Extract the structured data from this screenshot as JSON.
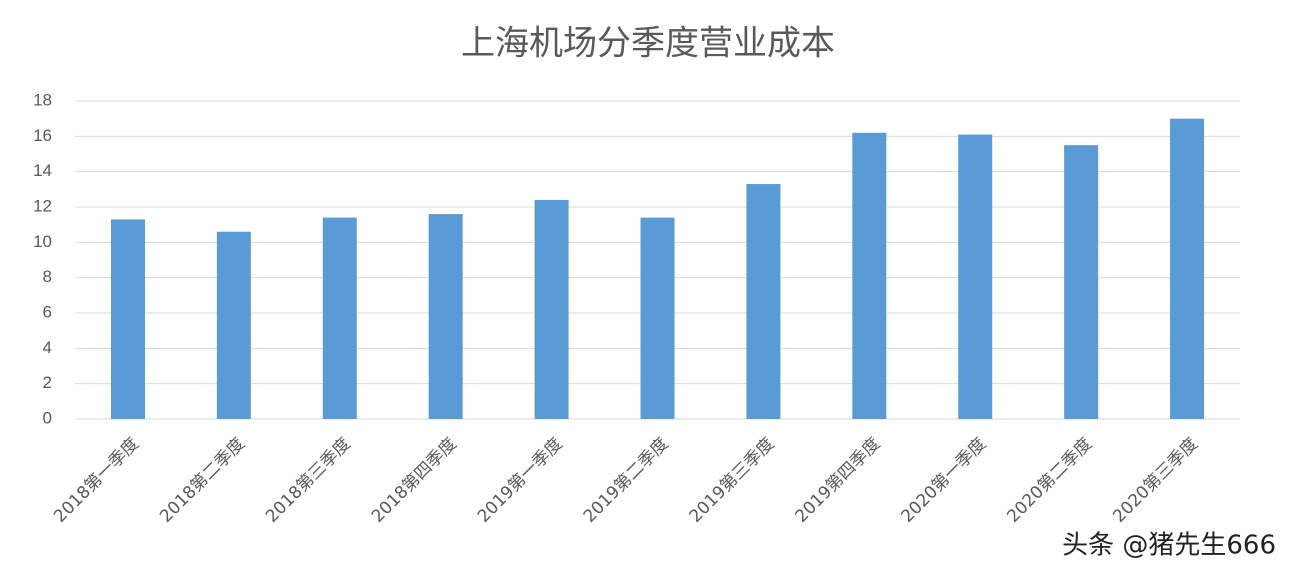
{
  "chart_data": {
    "type": "bar",
    "title": "上海机场分季度营业成本",
    "categories": [
      "2018第一季度",
      "2018第二季度",
      "2018第三季度",
      "2018第四季度",
      "2019第一季度",
      "2019第二季度",
      "2019第三季度",
      "2019第四季度",
      "2020第一季度",
      "2020第二季度",
      "2020第三季度"
    ],
    "values": [
      11.3,
      10.6,
      11.4,
      11.6,
      12.4,
      11.4,
      13.3,
      16.2,
      16.1,
      15.5,
      17.0
    ],
    "color": "#5b9bd5",
    "ylim": [
      0,
      18
    ],
    "yticks": [
      0,
      2,
      4,
      6,
      8,
      10,
      12,
      14,
      16,
      18
    ],
    "grid": true,
    "watermark": "头条 @猪先生666"
  }
}
